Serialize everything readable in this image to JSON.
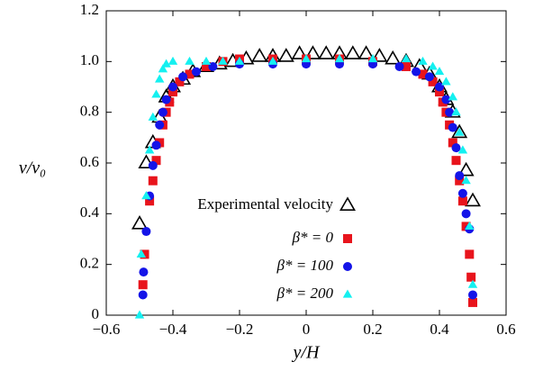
{
  "chart_data": {
    "type": "scatter",
    "x_label": "y/H",
    "y_label": "v/v₀",
    "xlim": [
      -0.6,
      0.6
    ],
    "ylim": [
      0,
      1.2
    ],
    "xticks": [
      {
        "value": -0.6,
        "label": "−0.6"
      },
      {
        "value": -0.4,
        "label": "−0.4"
      },
      {
        "value": -0.2,
        "label": "−0.2"
      },
      0,
      0.2,
      0.4,
      0.6
    ],
    "yticks": [
      0,
      0.2,
      0.4,
      0.6,
      0.8,
      {
        "value": 1,
        "label": "1.0"
      },
      1.2
    ],
    "legend_position": "lower right",
    "series": [
      {
        "name": "Experimental velocity",
        "color": "#000000",
        "marker": "triangle-open",
        "x": [
          -0.5,
          -0.48,
          -0.46,
          -0.44,
          -0.42,
          -0.4,
          -0.37,
          -0.34,
          -0.3,
          -0.26,
          -0.22,
          -0.18,
          -0.14,
          -0.1,
          -0.06,
          -0.02,
          0.02,
          0.06,
          0.1,
          0.14,
          0.18,
          0.22,
          0.26,
          0.3,
          0.34,
          0.37,
          0.4,
          0.42,
          0.44,
          0.46,
          0.48,
          0.5
        ],
        "values": [
          0.36,
          0.6,
          0.68,
          0.78,
          0.86,
          0.9,
          0.93,
          0.96,
          0.98,
          0.99,
          1.0,
          1.01,
          1.02,
          1.02,
          1.02,
          1.03,
          1.03,
          1.03,
          1.03,
          1.03,
          1.03,
          1.02,
          1.01,
          1.0,
          0.98,
          0.95,
          0.9,
          0.85,
          0.8,
          0.72,
          0.57,
          0.45
        ]
      },
      {
        "name": "β* = 0",
        "color": "#e8141c",
        "marker": "square",
        "x": [
          -0.49,
          -0.485,
          -0.47,
          -0.46,
          -0.45,
          -0.44,
          -0.43,
          -0.42,
          -0.41,
          -0.4,
          -0.38,
          -0.35,
          -0.3,
          -0.25,
          -0.2,
          -0.1,
          0,
          0.1,
          0.2,
          0.3,
          0.35,
          0.38,
          0.4,
          0.41,
          0.42,
          0.43,
          0.44,
          0.45,
          0.46,
          0.47,
          0.48,
          0.49,
          0.495,
          0.5
        ],
        "values": [
          0.12,
          0.24,
          0.45,
          0.53,
          0.61,
          0.68,
          0.75,
          0.8,
          0.84,
          0.88,
          0.92,
          0.95,
          0.98,
          1.0,
          1.01,
          1.01,
          1.01,
          1.01,
          1.0,
          0.98,
          0.95,
          0.92,
          0.88,
          0.84,
          0.8,
          0.75,
          0.68,
          0.61,
          0.53,
          0.45,
          0.35,
          0.24,
          0.15,
          0.05
        ]
      },
      {
        "name": "β* = 100",
        "color": "#1414e8",
        "marker": "circle",
        "x": [
          -0.49,
          -0.488,
          -0.48,
          -0.47,
          -0.46,
          -0.45,
          -0.44,
          -0.43,
          -0.42,
          -0.4,
          -0.37,
          -0.33,
          -0.28,
          -0.2,
          -0.1,
          0,
          0.1,
          0.2,
          0.28,
          0.33,
          0.37,
          0.4,
          0.42,
          0.43,
          0.44,
          0.45,
          0.46,
          0.47,
          0.48,
          0.49,
          0.5
        ],
        "values": [
          0.08,
          0.17,
          0.33,
          0.47,
          0.59,
          0.67,
          0.75,
          0.8,
          0.85,
          0.9,
          0.94,
          0.96,
          0.98,
          0.99,
          0.99,
          0.99,
          0.99,
          0.99,
          0.98,
          0.96,
          0.94,
          0.9,
          0.85,
          0.8,
          0.74,
          0.66,
          0.55,
          0.48,
          0.4,
          0.34,
          0.08
        ]
      },
      {
        "name": "β* = 200",
        "color": "#14f0f0",
        "marker": "triangle",
        "x": [
          -0.5,
          -0.495,
          -0.48,
          -0.47,
          -0.46,
          -0.45,
          -0.44,
          -0.43,
          -0.42,
          -0.4,
          -0.35,
          -0.3,
          -0.25,
          -0.2,
          -0.1,
          0,
          0.1,
          0.2,
          0.3,
          0.35,
          0.38,
          0.4,
          0.42,
          0.44,
          0.45,
          0.46,
          0.47,
          0.48,
          0.49,
          0.5
        ],
        "values": [
          0.0,
          0.24,
          0.47,
          0.65,
          0.78,
          0.87,
          0.93,
          0.97,
          0.99,
          1.0,
          1.0,
          1.0,
          1.0,
          1.0,
          1.0,
          1.01,
          1.01,
          1.01,
          1.01,
          1.0,
          0.98,
          0.96,
          0.92,
          0.86,
          0.8,
          0.72,
          0.65,
          0.53,
          0.35,
          0.12
        ]
      }
    ]
  }
}
